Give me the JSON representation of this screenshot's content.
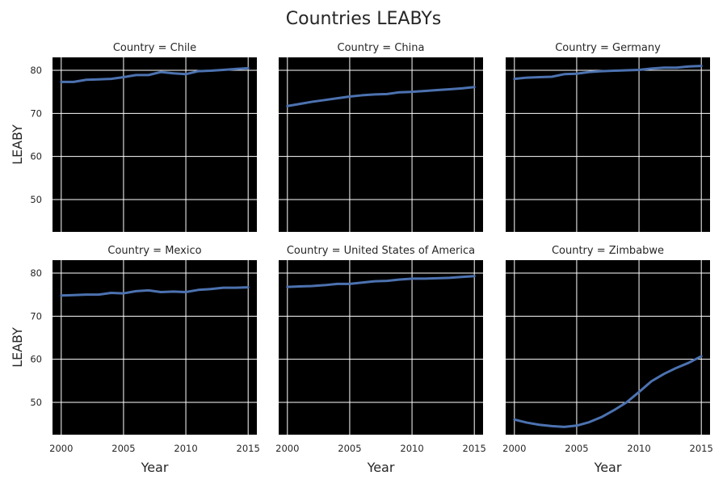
{
  "chart_data": {
    "type": "line",
    "title": "Countries LEABYs",
    "xlabel": "Year",
    "ylabel": "LEABY",
    "x": [
      2000,
      2001,
      2002,
      2003,
      2004,
      2005,
      2006,
      2007,
      2008,
      2009,
      2010,
      2011,
      2012,
      2013,
      2014,
      2015
    ],
    "xticks": [
      2000,
      2005,
      2010,
      2015
    ],
    "yticks": [
      50,
      60,
      70,
      80
    ],
    "xlim": [
      1999.3,
      2015.7
    ],
    "ylim": [
      42.5,
      83
    ],
    "grid": true,
    "line_color": "#4c72b0",
    "plot_background": "#000000",
    "panels": [
      {
        "title": "Country = Chile",
        "values": [
          77.3,
          77.3,
          77.8,
          77.9,
          78.0,
          78.4,
          78.9,
          78.9,
          79.6,
          79.3,
          79.1,
          79.8,
          79.9,
          80.1,
          80.3,
          80.5
        ]
      },
      {
        "title": "Country = China",
        "values": [
          71.7,
          72.2,
          72.7,
          73.1,
          73.5,
          73.9,
          74.2,
          74.4,
          74.5,
          74.9,
          75.0,
          75.2,
          75.4,
          75.6,
          75.8,
          76.1
        ]
      },
      {
        "title": "Country = Germany",
        "values": [
          78.0,
          78.3,
          78.4,
          78.5,
          79.1,
          79.2,
          79.6,
          79.8,
          79.9,
          80.0,
          80.1,
          80.4,
          80.6,
          80.6,
          80.9,
          81.0
        ]
      },
      {
        "title": "Country = Mexico",
        "values": [
          74.8,
          74.9,
          75.0,
          75.0,
          75.4,
          75.3,
          75.8,
          76.0,
          75.6,
          75.7,
          75.6,
          76.1,
          76.3,
          76.6,
          76.6,
          76.7
        ]
      },
      {
        "title": "Country = United States of America",
        "values": [
          76.8,
          76.9,
          77.0,
          77.2,
          77.5,
          77.5,
          77.8,
          78.1,
          78.2,
          78.5,
          78.7,
          78.7,
          78.8,
          78.9,
          79.1,
          79.3
        ]
      },
      {
        "title": "Country = Zimbabwe",
        "values": [
          46.0,
          45.3,
          44.8,
          44.5,
          44.3,
          44.6,
          45.4,
          46.6,
          48.2,
          50.0,
          52.4,
          54.9,
          56.6,
          58.0,
          59.2,
          60.7
        ]
      }
    ]
  }
}
